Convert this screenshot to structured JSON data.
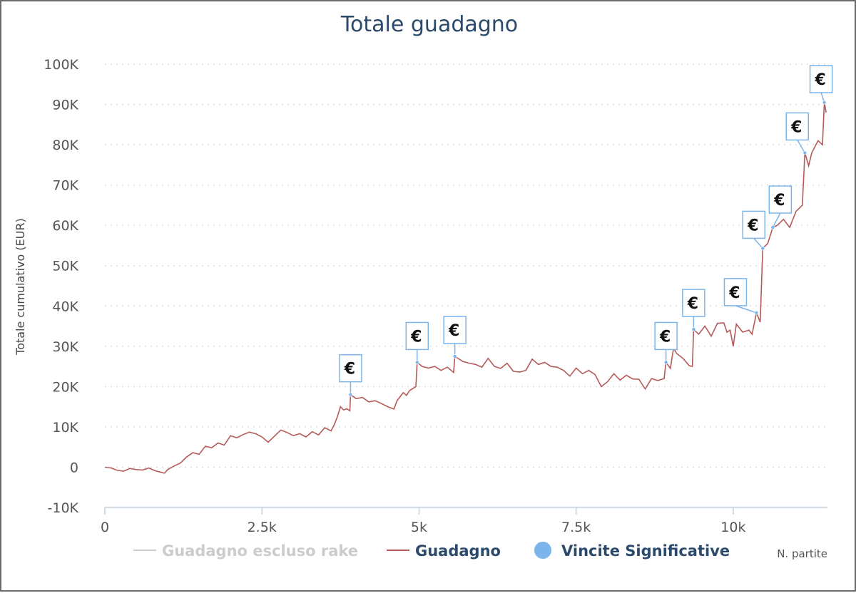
{
  "chart_data": {
    "type": "line",
    "title": "Totale guadagno",
    "xlabel": "N. partite",
    "ylabel": "Totale cumulativo (EUR)",
    "xlim": [
      0,
      11500
    ],
    "ylim": [
      -10000,
      100000
    ],
    "x_ticks": [
      0,
      2500,
      5000,
      7500,
      10000
    ],
    "x_tick_labels": [
      "0",
      "2.5k",
      "5k",
      "7.5k",
      "10k"
    ],
    "y_ticks": [
      -10000,
      0,
      10000,
      20000,
      30000,
      40000,
      50000,
      60000,
      70000,
      80000,
      90000,
      100000
    ],
    "y_tick_labels": [
      "-10K",
      "0",
      "10K",
      "20K",
      "30K",
      "40K",
      "50K",
      "60K",
      "70K",
      "80K",
      "90K",
      "100K"
    ],
    "grid": true,
    "legend_position": "bottom",
    "series": [
      {
        "name": "Guadagno escluso rake",
        "color": "#cccccc",
        "hidden": true
      },
      {
        "name": "Guadagno",
        "color": "#b55a5a",
        "points": [
          [
            0,
            0
          ],
          [
            100,
            -200
          ],
          [
            200,
            -800
          ],
          [
            300,
            -1000
          ],
          [
            400,
            -300
          ],
          [
            500,
            -600
          ],
          [
            600,
            -700
          ],
          [
            700,
            -200
          ],
          [
            800,
            -900
          ],
          [
            900,
            -1300
          ],
          [
            950,
            -1500
          ],
          [
            1000,
            -600
          ],
          [
            1100,
            300
          ],
          [
            1200,
            1000
          ],
          [
            1300,
            2500
          ],
          [
            1400,
            3600
          ],
          [
            1500,
            3200
          ],
          [
            1600,
            5200
          ],
          [
            1700,
            4800
          ],
          [
            1800,
            6000
          ],
          [
            1900,
            5500
          ],
          [
            2000,
            7800
          ],
          [
            2100,
            7300
          ],
          [
            2200,
            8100
          ],
          [
            2300,
            8700
          ],
          [
            2400,
            8300
          ],
          [
            2500,
            7500
          ],
          [
            2600,
            6200
          ],
          [
            2700,
            7700
          ],
          [
            2800,
            9200
          ],
          [
            2900,
            8600
          ],
          [
            3000,
            7800
          ],
          [
            3100,
            8300
          ],
          [
            3200,
            7500
          ],
          [
            3300,
            8800
          ],
          [
            3400,
            8000
          ],
          [
            3500,
            9800
          ],
          [
            3600,
            9000
          ],
          [
            3650,
            10500
          ],
          [
            3700,
            12500
          ],
          [
            3750,
            15000
          ],
          [
            3800,
            14200
          ],
          [
            3850,
            14500
          ],
          [
            3900,
            14000
          ],
          [
            3910,
            18000
          ],
          [
            4000,
            17000
          ],
          [
            4100,
            17300
          ],
          [
            4200,
            16200
          ],
          [
            4300,
            16500
          ],
          [
            4400,
            15800
          ],
          [
            4500,
            15000
          ],
          [
            4600,
            14400
          ],
          [
            4650,
            16500
          ],
          [
            4700,
            17500
          ],
          [
            4750,
            18500
          ],
          [
            4800,
            17800
          ],
          [
            4850,
            19000
          ],
          [
            4900,
            19500
          ],
          [
            4950,
            20000
          ],
          [
            4970,
            26000
          ],
          [
            5050,
            25000
          ],
          [
            5150,
            24600
          ],
          [
            5250,
            25000
          ],
          [
            5350,
            24000
          ],
          [
            5450,
            24800
          ],
          [
            5550,
            23500
          ],
          [
            5570,
            27500
          ],
          [
            5700,
            26200
          ],
          [
            5800,
            25800
          ],
          [
            5900,
            25500
          ],
          [
            6000,
            24800
          ],
          [
            6100,
            27000
          ],
          [
            6200,
            25000
          ],
          [
            6300,
            24500
          ],
          [
            6400,
            25800
          ],
          [
            6500,
            23800
          ],
          [
            6600,
            23600
          ],
          [
            6700,
            24000
          ],
          [
            6800,
            26800
          ],
          [
            6900,
            25500
          ],
          [
            7000,
            26000
          ],
          [
            7100,
            25000
          ],
          [
            7200,
            24800
          ],
          [
            7300,
            24000
          ],
          [
            7400,
            22600
          ],
          [
            7500,
            24600
          ],
          [
            7600,
            23200
          ],
          [
            7700,
            24000
          ],
          [
            7800,
            23000
          ],
          [
            7900,
            20000
          ],
          [
            8000,
            21200
          ],
          [
            8100,
            23200
          ],
          [
            8200,
            21600
          ],
          [
            8300,
            22800
          ],
          [
            8400,
            21900
          ],
          [
            8500,
            21800
          ],
          [
            8600,
            19400
          ],
          [
            8700,
            22000
          ],
          [
            8800,
            21500
          ],
          [
            8900,
            22000
          ],
          [
            8930,
            26000
          ],
          [
            9000,
            24500
          ],
          [
            9050,
            29500
          ],
          [
            9100,
            28200
          ],
          [
            9200,
            27000
          ],
          [
            9300,
            25200
          ],
          [
            9350,
            25000
          ],
          [
            9370,
            34200
          ],
          [
            9450,
            33000
          ],
          [
            9550,
            35000
          ],
          [
            9650,
            32500
          ],
          [
            9750,
            35700
          ],
          [
            9850,
            35800
          ],
          [
            9900,
            33500
          ],
          [
            9950,
            34000
          ],
          [
            10000,
            30000
          ],
          [
            10050,
            35500
          ],
          [
            10150,
            33500
          ],
          [
            10250,
            34000
          ],
          [
            10300,
            33000
          ],
          [
            10370,
            38300
          ],
          [
            10430,
            36000
          ],
          [
            10470,
            54300
          ],
          [
            10550,
            55500
          ],
          [
            10630,
            59500
          ],
          [
            10700,
            60000
          ],
          [
            10800,
            61500
          ],
          [
            10900,
            59500
          ],
          [
            11000,
            63500
          ],
          [
            11100,
            65000
          ],
          [
            11140,
            78000
          ],
          [
            11200,
            74800
          ],
          [
            11250,
            78000
          ],
          [
            11300,
            79500
          ],
          [
            11350,
            81000
          ],
          [
            11420,
            80000
          ],
          [
            11450,
            90500
          ],
          [
            11480,
            88000
          ]
        ]
      },
      {
        "name": "Vincite Significative",
        "color": "#7cb5ec",
        "markers": [
          {
            "x": 3910,
            "y": 18000,
            "label": "€"
          },
          {
            "x": 4970,
            "y": 26000,
            "label": "€"
          },
          {
            "x": 5570,
            "y": 27500,
            "label": "€"
          },
          {
            "x": 8930,
            "y": 26000,
            "label": "€"
          },
          {
            "x": 9370,
            "y": 34200,
            "label": "€"
          },
          {
            "x": 10370,
            "y": 38300,
            "label": "€"
          },
          {
            "x": 10470,
            "y": 54300,
            "label": "€"
          },
          {
            "x": 10630,
            "y": 59500,
            "label": "€"
          },
          {
            "x": 11140,
            "y": 78000,
            "label": "€"
          },
          {
            "x": 11450,
            "y": 90500,
            "label": "€"
          }
        ]
      }
    ]
  }
}
